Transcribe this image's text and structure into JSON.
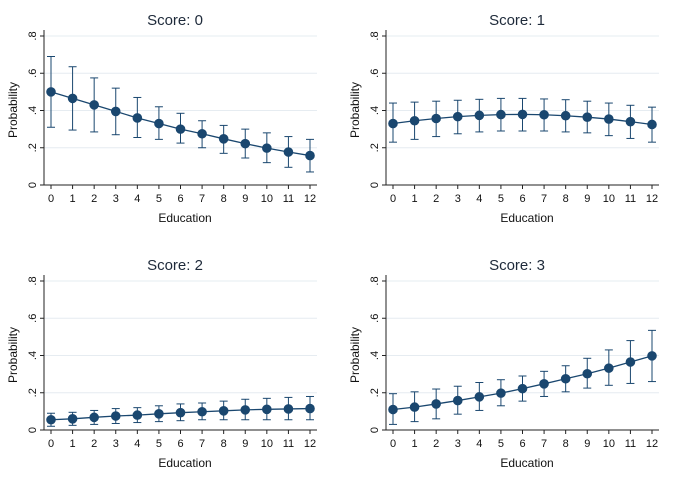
{
  "chart_data": [
    {
      "type": "line",
      "title": "Score: 0",
      "xlabel": "Education",
      "ylabel": "Probability",
      "x": [
        0,
        1,
        2,
        3,
        4,
        5,
        6,
        7,
        8,
        9,
        10,
        11,
        12
      ],
      "x_tick_labels": [
        "0",
        "1",
        "2",
        "3",
        "4",
        "5",
        "6",
        "7",
        "8",
        "9",
        "10",
        "11",
        "12"
      ],
      "y_ticks": [
        0,
        0.2,
        0.4,
        0.6,
        0.8
      ],
      "y_tick_labels": [
        "0",
        ".2",
        ".4",
        ".6",
        ".8"
      ],
      "ylim": [
        0,
        0.8
      ],
      "grid": true,
      "series": [
        {
          "name": "Score 0",
          "values": [
            0.5,
            0.465,
            0.43,
            0.395,
            0.36,
            0.33,
            0.3,
            0.275,
            0.248,
            0.222,
            0.198,
            0.177,
            0.158
          ],
          "ci_low": [
            0.31,
            0.295,
            0.285,
            0.27,
            0.255,
            0.245,
            0.225,
            0.2,
            0.17,
            0.145,
            0.12,
            0.095,
            0.07
          ],
          "ci_high": [
            0.69,
            0.635,
            0.575,
            0.52,
            0.47,
            0.42,
            0.385,
            0.345,
            0.32,
            0.3,
            0.28,
            0.26,
            0.245
          ]
        }
      ]
    },
    {
      "type": "line",
      "title": "Score: 1",
      "xlabel": "Education",
      "ylabel": "Probability",
      "x": [
        0,
        1,
        2,
        3,
        4,
        5,
        6,
        7,
        8,
        9,
        10,
        11,
        12
      ],
      "x_tick_labels": [
        "0",
        "1",
        "2",
        "3",
        "4",
        "5",
        "6",
        "7",
        "8",
        "9",
        "10",
        "11",
        "12"
      ],
      "y_ticks": [
        0,
        0.2,
        0.4,
        0.6,
        0.8
      ],
      "y_tick_labels": [
        "0",
        ".2",
        ".4",
        ".6",
        ".8"
      ],
      "ylim": [
        0,
        0.8
      ],
      "grid": true,
      "series": [
        {
          "name": "Score 1",
          "values": [
            0.33,
            0.345,
            0.357,
            0.367,
            0.374,
            0.378,
            0.379,
            0.377,
            0.372,
            0.364,
            0.354,
            0.34,
            0.325
          ],
          "ci_low": [
            0.23,
            0.245,
            0.26,
            0.275,
            0.285,
            0.29,
            0.29,
            0.29,
            0.285,
            0.28,
            0.265,
            0.25,
            0.23
          ],
          "ci_high": [
            0.44,
            0.445,
            0.45,
            0.455,
            0.46,
            0.465,
            0.465,
            0.462,
            0.458,
            0.45,
            0.44,
            0.428,
            0.418
          ]
        }
      ]
    },
    {
      "type": "line",
      "title": "Score: 2",
      "xlabel": "Education",
      "ylabel": "Probability",
      "x": [
        0,
        1,
        2,
        3,
        4,
        5,
        6,
        7,
        8,
        9,
        10,
        11,
        12
      ],
      "x_tick_labels": [
        "0",
        "1",
        "2",
        "3",
        "4",
        "5",
        "6",
        "7",
        "8",
        "9",
        "10",
        "11",
        "12"
      ],
      "y_ticks": [
        0,
        0.2,
        0.4,
        0.6,
        0.8
      ],
      "y_tick_labels": [
        "0",
        ".2",
        ".4",
        ".6",
        ".8"
      ],
      "ylim": [
        0,
        0.8
      ],
      "grid": true,
      "series": [
        {
          "name": "Score 2",
          "values": [
            0.055,
            0.06,
            0.068,
            0.075,
            0.08,
            0.087,
            0.093,
            0.098,
            0.103,
            0.108,
            0.111,
            0.113,
            0.115
          ],
          "ci_low": [
            0.02,
            0.025,
            0.03,
            0.035,
            0.04,
            0.045,
            0.05,
            0.055,
            0.055,
            0.055,
            0.055,
            0.055,
            0.055
          ],
          "ci_high": [
            0.09,
            0.095,
            0.105,
            0.115,
            0.12,
            0.13,
            0.14,
            0.145,
            0.155,
            0.165,
            0.17,
            0.175,
            0.18
          ]
        }
      ]
    },
    {
      "type": "line",
      "title": "Score: 3",
      "xlabel": "Education",
      "ylabel": "Probability",
      "x": [
        0,
        1,
        2,
        3,
        4,
        5,
        6,
        7,
        8,
        9,
        10,
        11,
        12
      ],
      "x_tick_labels": [
        "0",
        "1",
        "2",
        "3",
        "4",
        "5",
        "6",
        "7",
        "8",
        "9",
        "10",
        "11",
        "12"
      ],
      "y_ticks": [
        0,
        0.2,
        0.4,
        0.6,
        0.8
      ],
      "y_tick_labels": [
        "0",
        ".2",
        ".4",
        ".6",
        ".8"
      ],
      "ylim": [
        0,
        0.8
      ],
      "grid": true,
      "series": [
        {
          "name": "Score 3",
          "values": [
            0.11,
            0.123,
            0.14,
            0.158,
            0.178,
            0.198,
            0.222,
            0.248,
            0.275,
            0.302,
            0.332,
            0.365,
            0.398
          ],
          "ci_low": [
            0.03,
            0.045,
            0.06,
            0.085,
            0.105,
            0.13,
            0.155,
            0.18,
            0.205,
            0.225,
            0.24,
            0.25,
            0.26
          ],
          "ci_high": [
            0.195,
            0.205,
            0.22,
            0.235,
            0.255,
            0.27,
            0.29,
            0.315,
            0.345,
            0.385,
            0.43,
            0.48,
            0.535
          ]
        }
      ]
    }
  ]
}
